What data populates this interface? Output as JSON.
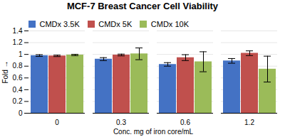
{
  "chart_data": {
    "type": "bar",
    "title": "MCF-7 Breast Cancer Cell Viability",
    "xlabel": "Conc. mg of iron core/mL",
    "ylabel": "Fold",
    "categories": [
      "0",
      "0.3",
      "0.6",
      "1.2"
    ],
    "series": [
      {
        "name": "CMDx 3.5K",
        "color": "#4472C4",
        "values": [
          0.98,
          0.92,
          0.83,
          0.89
        ],
        "errors": [
          0.015,
          0.025,
          0.03,
          0.04
        ]
      },
      {
        "name": "CMDx 5K",
        "color": "#C0504D",
        "values": [
          0.975,
          0.99,
          0.945,
          1.02
        ],
        "errors": [
          0.012,
          0.015,
          0.05,
          0.04
        ]
      },
      {
        "name": "CMDx 10K",
        "color": "#9BBB59",
        "values": [
          0.99,
          1.01,
          0.875,
          0.75
        ],
        "errors": [
          0.012,
          0.1,
          0.17,
          0.22
        ]
      }
    ],
    "ylim": [
      0,
      1.4
    ],
    "yticks": [
      0,
      0.2,
      0.4,
      0.6,
      0.8,
      1,
      1.2,
      1.4
    ],
    "grid": true,
    "legend": "upper left"
  }
}
